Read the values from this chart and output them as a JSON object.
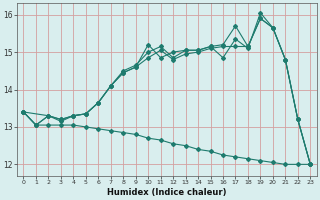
{
  "xlabel": "Humidex (Indice chaleur)",
  "xlim": [
    -0.5,
    23.5
  ],
  "ylim": [
    11.7,
    16.3
  ],
  "xticks": [
    0,
    1,
    2,
    3,
    4,
    5,
    6,
    7,
    8,
    9,
    10,
    11,
    12,
    13,
    14,
    15,
    16,
    17,
    18,
    19,
    20,
    21,
    22,
    23
  ],
  "yticks": [
    12,
    13,
    14,
    15,
    16
  ],
  "bg_color": "#d9eeee",
  "grid_color": "#d4a0a0",
  "line_color": "#1e7b6e",
  "series": [
    {
      "x": [
        0,
        1,
        2,
        3,
        4,
        5,
        6,
        7,
        8,
        9,
        10,
        11,
        12,
        13,
        14,
        15,
        16,
        17,
        18,
        19,
        20,
        21,
        22,
        23
      ],
      "y": [
        13.4,
        13.05,
        13.3,
        13.15,
        13.3,
        13.35,
        13.65,
        14.1,
        14.45,
        14.6,
        15.2,
        14.85,
        15.0,
        15.05,
        15.05,
        15.15,
        14.85,
        15.35,
        15.1,
        16.05,
        15.65,
        14.8,
        13.2,
        12.0
      ]
    },
    {
      "x": [
        0,
        2,
        3,
        4,
        5,
        6,
        7,
        8,
        9,
        10,
        11,
        12,
        13,
        14,
        15,
        16,
        17,
        18,
        19,
        20,
        21,
        22,
        23
      ],
      "y": [
        13.4,
        13.3,
        13.2,
        13.3,
        13.35,
        13.65,
        14.1,
        14.5,
        14.65,
        15.0,
        15.15,
        14.85,
        15.05,
        15.05,
        15.15,
        15.2,
        15.7,
        15.15,
        15.9,
        15.65,
        14.8,
        13.2,
        12.0
      ]
    },
    {
      "x": [
        0,
        1,
        2,
        3,
        4,
        5,
        6,
        7,
        8,
        9,
        10,
        11,
        12,
        13,
        14,
        15,
        16,
        17,
        18,
        19,
        20,
        21,
        22,
        23
      ],
      "y": [
        13.4,
        13.05,
        13.3,
        13.2,
        13.3,
        13.35,
        13.65,
        14.1,
        14.45,
        14.6,
        14.85,
        15.05,
        14.8,
        14.95,
        15.0,
        15.1,
        15.15,
        15.15,
        15.15,
        15.9,
        15.65,
        14.8,
        13.2,
        12.0
      ]
    },
    {
      "x": [
        0,
        1,
        2,
        3,
        4,
        5,
        6,
        7,
        8,
        9,
        10,
        11,
        12,
        13,
        14,
        15,
        16,
        17,
        18,
        19,
        20,
        21,
        22,
        23
      ],
      "y": [
        13.4,
        13.05,
        13.05,
        13.05,
        13.05,
        13.0,
        12.95,
        12.9,
        12.85,
        12.8,
        12.7,
        12.65,
        12.55,
        12.5,
        12.4,
        12.35,
        12.25,
        12.2,
        12.15,
        12.1,
        12.05,
        12.0,
        12.0,
        12.0
      ]
    }
  ]
}
